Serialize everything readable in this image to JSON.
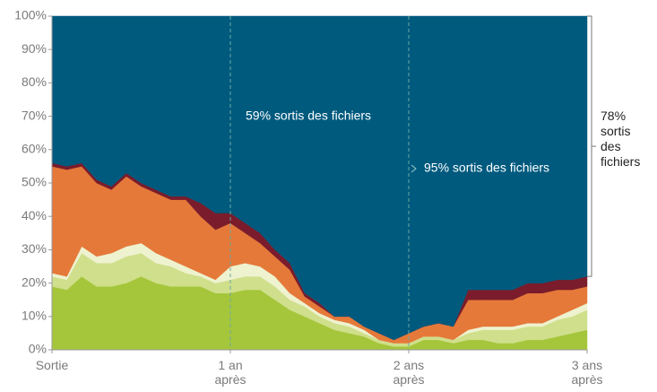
{
  "chart_data": {
    "type": "stacked_area",
    "x": [
      0,
      1,
      2,
      3,
      4,
      5,
      6,
      7,
      8,
      9,
      10,
      11,
      12,
      13,
      14,
      15,
      16,
      17,
      18,
      19,
      20,
      21,
      22,
      23,
      24,
      25,
      26,
      27,
      28,
      29,
      30,
      31,
      32,
      33,
      34,
      35,
      36
    ],
    "xlim": [
      0,
      36
    ],
    "xticks": [
      {
        "value": 0,
        "label": "Sortie"
      },
      {
        "value": 12,
        "label": "1 an après"
      },
      {
        "value": 24,
        "label": "2 ans après"
      },
      {
        "value": 36,
        "label": "3 ans après"
      }
    ],
    "ylim": [
      0,
      100
    ],
    "yticks": [
      {
        "value": 0,
        "label": "0%"
      },
      {
        "value": 10,
        "label": "10%"
      },
      {
        "value": 20,
        "label": "20%"
      },
      {
        "value": 30,
        "label": "30%"
      },
      {
        "value": 40,
        "label": "40%"
      },
      {
        "value": 50,
        "label": "50%"
      },
      {
        "value": 60,
        "label": "60%"
      },
      {
        "value": 70,
        "label": "70%"
      },
      {
        "value": 80,
        "label": "80%"
      },
      {
        "value": 90,
        "label": "90%"
      },
      {
        "value": 100,
        "label": "100%"
      }
    ],
    "grid": false,
    "series": [
      {
        "color": "#a5c63b",
        "values": [
          19,
          18,
          22,
          19,
          19,
          20,
          22,
          20,
          19,
          19,
          19,
          17,
          17,
          18,
          18,
          15,
          12,
          10,
          8,
          6,
          5,
          4,
          2,
          1,
          1,
          3,
          3,
          2,
          3,
          3,
          2,
          2,
          3,
          3,
          4,
          5,
          6
        ]
      },
      {
        "color": "#cfdf8b",
        "values": [
          3,
          3,
          7,
          7,
          7,
          8,
          7,
          6,
          6,
          4,
          3,
          3,
          4,
          4,
          4,
          4,
          3,
          3,
          2,
          2,
          2,
          1,
          1,
          1,
          1,
          1,
          1,
          1,
          2,
          3,
          4,
          4,
          4,
          4,
          5,
          5,
          6
        ]
      },
      {
        "color": "#eef2cf",
        "values": [
          1,
          1,
          2,
          2,
          3,
          3,
          3,
          3,
          2,
          2,
          1,
          1,
          4,
          4,
          3,
          3,
          2,
          1,
          1,
          1,
          1,
          1,
          0,
          0,
          0,
          0,
          0,
          0,
          1,
          1,
          1,
          1,
          1,
          1,
          1,
          2,
          2
        ]
      },
      {
        "color": "#e5793a",
        "values": [
          32,
          32,
          24,
          22,
          19,
          21,
          17,
          18,
          18,
          20,
          17,
          15,
          13,
          9,
          7,
          6,
          7,
          2,
          2,
          1,
          2,
          1,
          2,
          1,
          3,
          3,
          4,
          4,
          9,
          8,
          8,
          8,
          9,
          9,
          8,
          6,
          5
        ]
      },
      {
        "color": "#7a1c2b",
        "values": [
          1,
          1,
          1,
          1,
          1,
          1,
          1,
          1,
          1,
          1,
          4,
          5,
          3,
          3,
          3,
          2,
          2,
          1,
          1,
          0,
          0,
          0,
          0,
          0,
          0,
          0,
          0,
          0,
          3,
          3,
          3,
          3,
          3,
          3,
          3,
          3,
          3
        ]
      },
      {
        "color": "#005a7e",
        "values": [
          44,
          45,
          44,
          49,
          51,
          47,
          50,
          52,
          54,
          54,
          56,
          59,
          59,
          62,
          65,
          70,
          74,
          83,
          86,
          90,
          90,
          93,
          95,
          97,
          95,
          93,
          92,
          93,
          82,
          82,
          82,
          82,
          80,
          80,
          79,
          79,
          78
        ]
      }
    ],
    "annotations": [
      {
        "text": "59% sortis des fichiers",
        "x": 12
      },
      {
        "text": "95% sortis des fichiers",
        "x": 24
      },
      {
        "text": "78% sortis des fichiers",
        "x": 36
      }
    ]
  }
}
